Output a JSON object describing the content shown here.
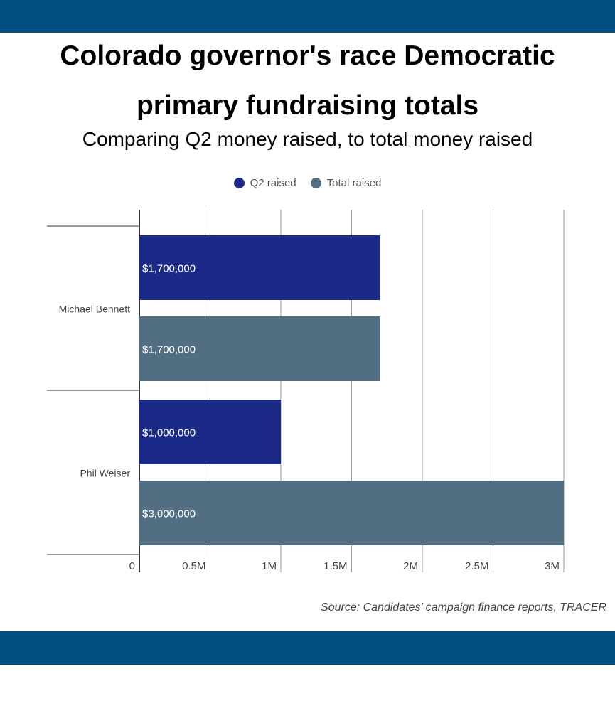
{
  "header": {
    "title_line1": "Colorado governor's race Democratic",
    "title_line2": "primary fundraising totals",
    "subtitle": "Comparing Q2 money raised, to total money raised"
  },
  "legend": {
    "q2": "Q2 raised",
    "total": "Total raised"
  },
  "source": "Source: Candidates’ campaign finance reports, TRACER",
  "colors": {
    "band": "#004f80",
    "q2": "#1b2a87",
    "total": "#526e82",
    "grid": "#9a9a9a",
    "axis": "#333333"
  },
  "chart_data": {
    "type": "bar",
    "orientation": "horizontal",
    "title": "Colorado governor's race Democratic primary fundraising totals",
    "subtitle": "Comparing Q2 money raised, to total money raised",
    "categories": [
      "Michael Bennett",
      "Phil Weiser"
    ],
    "series": [
      {
        "name": "Q2 raised",
        "values": [
          1700000,
          1000000
        ],
        "labels": [
          "$1,700,000",
          "$1,000,000"
        ]
      },
      {
        "name": "Total raised",
        "values": [
          1700000,
          3000000
        ],
        "labels": [
          "$1,700,000",
          "$3,000,000"
        ]
      }
    ],
    "xlim": [
      0,
      3000000
    ],
    "ticks": [
      0,
      500000,
      1000000,
      1500000,
      2000000,
      2500000,
      3000000
    ],
    "tick_labels": [
      "0",
      "0.5M",
      "1M",
      "1.5M",
      "2M",
      "2.5M",
      "3M"
    ],
    "grid": true,
    "legend_position": "top-center"
  }
}
